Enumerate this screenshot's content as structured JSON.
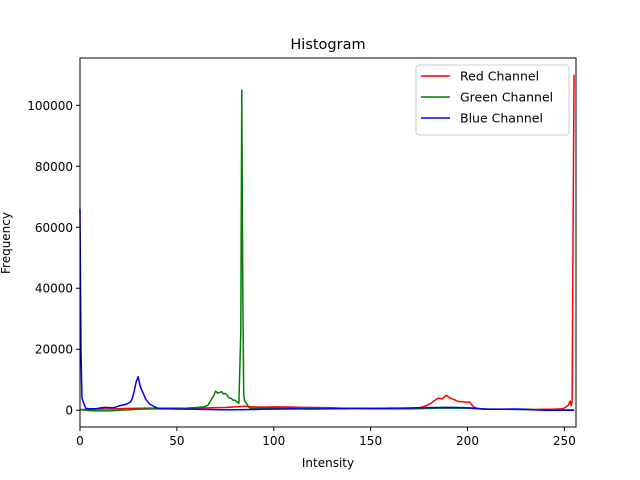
{
  "chart_data": {
    "type": "line",
    "title": "Histogram",
    "xlabel": "Intensity",
    "ylabel": "Frequency",
    "xlim": [
      0,
      256
    ],
    "ylim": [
      -5500,
      115500
    ],
    "xticks": [
      0,
      50,
      100,
      150,
      200,
      250
    ],
    "yticks": [
      0,
      20000,
      40000,
      60000,
      80000,
      100000
    ],
    "grid": false,
    "legend_position": "top-right",
    "series": [
      {
        "name": "Red Channel",
        "color": "#ff0000",
        "points": [
          [
            0,
            200
          ],
          [
            5,
            300
          ],
          [
            10,
            350
          ],
          [
            15,
            400
          ],
          [
            20,
            500
          ],
          [
            25,
            600
          ],
          [
            30,
            650
          ],
          [
            35,
            700
          ],
          [
            40,
            650
          ],
          [
            45,
            700
          ],
          [
            50,
            700
          ],
          [
            55,
            650
          ],
          [
            60,
            700
          ],
          [
            65,
            750
          ],
          [
            70,
            850
          ],
          [
            75,
            900
          ],
          [
            80,
            1100
          ],
          [
            85,
            1300
          ],
          [
            90,
            1100
          ],
          [
            95,
            1000
          ],
          [
            100,
            1100
          ],
          [
            105,
            1050
          ],
          [
            110,
            1000
          ],
          [
            115,
            950
          ],
          [
            120,
            900
          ],
          [
            125,
            850
          ],
          [
            130,
            800
          ],
          [
            135,
            700
          ],
          [
            140,
            650
          ],
          [
            145,
            600
          ],
          [
            150,
            550
          ],
          [
            155,
            550
          ],
          [
            160,
            500
          ],
          [
            165,
            550
          ],
          [
            170,
            600
          ],
          [
            175,
            800
          ],
          [
            178,
            1300
          ],
          [
            181,
            2200
          ],
          [
            183,
            3200
          ],
          [
            185,
            4000
          ],
          [
            187,
            3700
          ],
          [
            189,
            4900
          ],
          [
            191,
            4000
          ],
          [
            193,
            3500
          ],
          [
            195,
            2900
          ],
          [
            197,
            2800
          ],
          [
            199,
            2600
          ],
          [
            201,
            2700
          ],
          [
            203,
            1200
          ],
          [
            205,
            500
          ],
          [
            210,
            350
          ],
          [
            215,
            300
          ],
          [
            220,
            350
          ],
          [
            225,
            300
          ],
          [
            230,
            250
          ],
          [
            235,
            250
          ],
          [
            240,
            300
          ],
          [
            245,
            350
          ],
          [
            248,
            450
          ],
          [
            250,
            700
          ],
          [
            251,
            1200
          ],
          [
            252,
            1600
          ],
          [
            253,
            3000
          ],
          [
            253.5,
            1500
          ],
          [
            254,
            3000
          ],
          [
            254.5,
            60000
          ],
          [
            255,
            110000
          ]
        ]
      },
      {
        "name": "Green Channel",
        "color": "#008000",
        "points": [
          [
            0,
            200
          ],
          [
            5,
            -150
          ],
          [
            10,
            -200
          ],
          [
            15,
            -200
          ],
          [
            20,
            0
          ],
          [
            25,
            100
          ],
          [
            30,
            300
          ],
          [
            35,
            400
          ],
          [
            40,
            500
          ],
          [
            45,
            450
          ],
          [
            50,
            600
          ],
          [
            55,
            700
          ],
          [
            60,
            900
          ],
          [
            64,
            1100
          ],
          [
            66,
            1600
          ],
          [
            67,
            2600
          ],
          [
            68,
            3800
          ],
          [
            69,
            4700
          ],
          [
            70,
            6300
          ],
          [
            71,
            5600
          ],
          [
            72,
            5800
          ],
          [
            73,
            6100
          ],
          [
            74,
            5400
          ],
          [
            75,
            5500
          ],
          [
            76,
            4900
          ],
          [
            77,
            4000
          ],
          [
            78,
            3900
          ],
          [
            79,
            3300
          ],
          [
            80,
            3300
          ],
          [
            81,
            2700
          ],
          [
            82,
            2300
          ],
          [
            83,
            26000
          ],
          [
            83.5,
            105000
          ],
          [
            84,
            40000
          ],
          [
            84.5,
            5000
          ],
          [
            85,
            3000
          ],
          [
            86,
            2200
          ],
          [
            87,
            1100
          ],
          [
            88,
            600
          ],
          [
            90,
            600
          ],
          [
            95,
            700
          ],
          [
            100,
            700
          ],
          [
            105,
            750
          ],
          [
            110,
            800
          ],
          [
            115,
            700
          ],
          [
            120,
            650
          ],
          [
            125,
            600
          ],
          [
            130,
            600
          ],
          [
            135,
            550
          ],
          [
            140,
            600
          ],
          [
            145,
            500
          ],
          [
            150,
            500
          ],
          [
            155,
            450
          ],
          [
            160,
            450
          ],
          [
            165,
            450
          ],
          [
            170,
            450
          ],
          [
            175,
            500
          ],
          [
            180,
            600
          ],
          [
            185,
            700
          ],
          [
            190,
            750
          ],
          [
            195,
            700
          ],
          [
            200,
            650
          ],
          [
            205,
            500
          ],
          [
            210,
            400
          ],
          [
            215,
            350
          ],
          [
            220,
            300
          ],
          [
            225,
            250
          ],
          [
            230,
            200
          ],
          [
            235,
            200
          ],
          [
            240,
            150
          ],
          [
            245,
            150
          ],
          [
            250,
            100
          ],
          [
            255,
            100
          ]
        ]
      },
      {
        "name": "Blue Channel",
        "color": "#0000ff",
        "points": [
          [
            0,
            66000
          ],
          [
            0.5,
            20000
          ],
          [
            1,
            4000
          ],
          [
            2,
            2200
          ],
          [
            3,
            600
          ],
          [
            5,
            500
          ],
          [
            8,
            500
          ],
          [
            10,
            700
          ],
          [
            12,
            900
          ],
          [
            14,
            900
          ],
          [
            16,
            800
          ],
          [
            18,
            900
          ],
          [
            20,
            1400
          ],
          [
            22,
            1700
          ],
          [
            24,
            2000
          ],
          [
            26,
            2700
          ],
          [
            27,
            3900
          ],
          [
            28,
            6300
          ],
          [
            29,
            9300
          ],
          [
            30,
            11000
          ],
          [
            31,
            8000
          ],
          [
            32,
            6400
          ],
          [
            33,
            5000
          ],
          [
            34,
            3500
          ],
          [
            35,
            2800
          ],
          [
            36,
            2000
          ],
          [
            38,
            1300
          ],
          [
            40,
            700
          ],
          [
            45,
            500
          ],
          [
            50,
            400
          ],
          [
            55,
            350
          ],
          [
            60,
            300
          ],
          [
            65,
            250
          ],
          [
            70,
            200
          ],
          [
            75,
            150
          ],
          [
            80,
            150
          ],
          [
            85,
            200
          ],
          [
            90,
            250
          ],
          [
            95,
            300
          ],
          [
            100,
            350
          ],
          [
            105,
            400
          ],
          [
            110,
            450
          ],
          [
            115,
            450
          ],
          [
            120,
            400
          ],
          [
            125,
            450
          ],
          [
            130,
            500
          ],
          [
            135,
            500
          ],
          [
            140,
            550
          ],
          [
            145,
            600
          ],
          [
            150,
            600
          ],
          [
            155,
            600
          ],
          [
            160,
            700
          ],
          [
            165,
            700
          ],
          [
            170,
            750
          ],
          [
            175,
            800
          ],
          [
            180,
            850
          ],
          [
            185,
            900
          ],
          [
            190,
            950
          ],
          [
            195,
            900
          ],
          [
            200,
            800
          ],
          [
            205,
            600
          ],
          [
            210,
            300
          ],
          [
            215,
            300
          ],
          [
            220,
            350
          ],
          [
            225,
            400
          ],
          [
            230,
            300
          ],
          [
            235,
            100
          ],
          [
            240,
            0
          ],
          [
            245,
            0
          ],
          [
            250,
            0
          ],
          [
            255,
            0
          ]
        ]
      }
    ]
  }
}
